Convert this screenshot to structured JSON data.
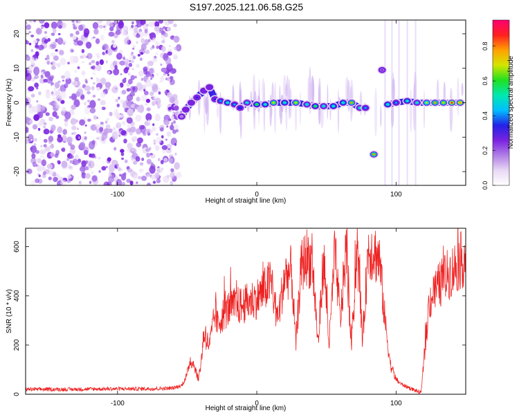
{
  "title": "S197.2025.121.06.58.G25",
  "chart_data": [
    {
      "type": "heatmap",
      "xlabel": "Height of straight line (km)",
      "ylabel": "Frequency (Hz)",
      "xlim": [
        -166,
        150
      ],
      "ylim": [
        -24,
        24
      ],
      "xticks": [
        -100,
        0,
        100
      ],
      "yticks": [
        -20,
        -10,
        0,
        10,
        20
      ],
      "colorbar": {
        "label": "Normalized spectral amplitude",
        "range": [
          0,
          0.95
        ],
        "ticks": [
          0.0,
          0.2,
          0.4,
          0.6,
          0.8
        ],
        "tick_labels": [
          "0.0",
          "0.2",
          "0.4",
          "0.6",
          "0.8"
        ],
        "colormap": [
          "#ffffff",
          "#e8d8f4",
          "#b07ee6",
          "#7a22e0",
          "#2222e6",
          "#00bfff",
          "#00e8b0",
          "#20e020",
          "#d4e600",
          "#ffa000",
          "#ff2020",
          "#ff0070"
        ]
      },
      "noise_region_km": [
        -166,
        -56
      ],
      "signal_track": [
        {
          "km": -54,
          "hz": -4,
          "amp": 0.2
        },
        {
          "km": -51,
          "hz": -2,
          "amp": 0.28
        },
        {
          "km": -47,
          "hz": 0,
          "amp": 0.3
        },
        {
          "km": -43,
          "hz": 1.5,
          "amp": 0.32
        },
        {
          "km": -38,
          "hz": 3.5,
          "amp": 0.3
        },
        {
          "km": -34,
          "hz": 4.5,
          "amp": 0.3
        },
        {
          "km": -30,
          "hz": 1,
          "amp": 0.35
        },
        {
          "km": -26,
          "hz": 0.5,
          "amp": 0.4
        },
        {
          "km": -21,
          "hz": 0,
          "amp": 0.55
        },
        {
          "km": -16,
          "hz": -0.5,
          "amp": 0.45
        },
        {
          "km": -12,
          "hz": -1.5,
          "amp": 0.38
        },
        {
          "km": -7,
          "hz": 0,
          "amp": 0.5
        },
        {
          "km": 0,
          "hz": -0.5,
          "amp": 0.62
        },
        {
          "km": 6,
          "hz": -0.5,
          "amp": 0.55
        },
        {
          "km": 12,
          "hz": 0,
          "amp": 0.7
        },
        {
          "km": 20,
          "hz": 0,
          "amp": 0.55
        },
        {
          "km": 28,
          "hz": 0,
          "amp": 0.7
        },
        {
          "km": 36,
          "hz": -0.5,
          "amp": 0.5
        },
        {
          "km": 42,
          "hz": -1,
          "amp": 0.6
        },
        {
          "km": 48,
          "hz": -1,
          "amp": 0.5
        },
        {
          "km": 55,
          "hz": -1,
          "amp": 0.55
        },
        {
          "km": 62,
          "hz": 0,
          "amp": 0.55
        },
        {
          "km": 68,
          "hz": 0,
          "amp": 0.75
        },
        {
          "km": 74,
          "hz": -1.5,
          "amp": 0.5
        },
        {
          "km": 78,
          "hz": -1.5,
          "amp": 0.4
        },
        {
          "km": 84,
          "hz": -15,
          "amp": 0.75
        },
        {
          "km": 90,
          "hz": 9.5,
          "amp": 0.25
        },
        {
          "km": 94,
          "hz": -0.5,
          "amp": 0.55
        },
        {
          "km": 100,
          "hz": 0,
          "amp": 0.45
        },
        {
          "km": 108,
          "hz": 0.5,
          "amp": 0.55
        },
        {
          "km": 115,
          "hz": 0,
          "amp": 0.5
        },
        {
          "km": 122,
          "hz": 0,
          "amp": 0.65
        },
        {
          "km": 128,
          "hz": 0,
          "amp": 0.75
        },
        {
          "km": 134,
          "hz": 0,
          "amp": 0.7
        },
        {
          "km": 140,
          "hz": 0,
          "amp": 0.85
        },
        {
          "km": 146,
          "hz": 0,
          "amp": 0.8
        }
      ]
    },
    {
      "type": "line",
      "xlabel": "Height of straight line (km)",
      "ylabel": "SNR (10 * v/v)",
      "xlim": [
        -166,
        150
      ],
      "ylim": [
        0,
        675
      ],
      "xticks": [
        -100,
        0,
        100
      ],
      "yticks": [
        0,
        200,
        400,
        600
      ],
      "color": "#ee2020",
      "series": [
        {
          "x": [
            -166,
            -150,
            -130,
            -110,
            -90,
            -70,
            -60,
            -54,
            -50,
            -48,
            -45,
            -42,
            -40,
            -38,
            -36,
            -34,
            -32,
            -30,
            -28,
            -25,
            -20,
            -15,
            -10,
            -5,
            0,
            5,
            10,
            15,
            20,
            25,
            28,
            32,
            36,
            40,
            44,
            48,
            52,
            56,
            60,
            64,
            68,
            72,
            76,
            80,
            84,
            88,
            92,
            96,
            100,
            104,
            108,
            112,
            116,
            118,
            120,
            124,
            128,
            132,
            136,
            140,
            144,
            150
          ],
          "y": [
            20,
            20,
            20,
            22,
            22,
            23,
            25,
            35,
            80,
            140,
            120,
            60,
            130,
            250,
            220,
            200,
            260,
            330,
            280,
            320,
            350,
            360,
            360,
            380,
            390,
            420,
            460,
            300,
            480,
            500,
            200,
            520,
            560,
            530,
            200,
            560,
            200,
            580,
            300,
            590,
            200,
            600,
            220,
            590,
            580,
            550,
            300,
            120,
            60,
            40,
            30,
            20,
            10,
            5,
            140,
            380,
            420,
            450,
            480,
            500,
            530,
            560
          ]
        }
      ]
    }
  ]
}
